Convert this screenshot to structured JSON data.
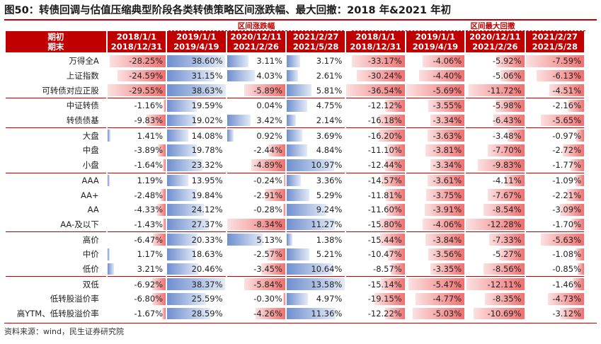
{
  "title": "图50：转债回调与估值压缩典型阶段各类转债策略区间涨跌幅、最大回撤：2018 年&2021 年初",
  "group_labels": {
    "rise": "区间涨跌幅",
    "drawdown": "区间最大回撤"
  },
  "header": {
    "corner": [
      "期初",
      "期末"
    ],
    "periods": [
      [
        "2018/1/1",
        "2018/12/31"
      ],
      [
        "2019/1/1",
        "2019/4/19"
      ],
      [
        "2020/12/11",
        "2021/2/26"
      ],
      [
        "2021/2/27",
        "2021/5/28"
      ],
      [
        "2018/1/1",
        "2018/12/31"
      ],
      [
        "2019/1/1",
        "2019/4/19"
      ],
      [
        "2020/12/11",
        "2021/2/26"
      ],
      [
        "2021/2/27",
        "2021/5/28"
      ]
    ]
  },
  "rows": [
    {
      "label": "万得全A",
      "values": [
        "-28.25%",
        "38.60%",
        "3.11%",
        "3.17%",
        "-33.17%",
        "-4.06%",
        "-5.92%",
        "-7.59%"
      ],
      "sep": false
    },
    {
      "label": "上证指数",
      "values": [
        "-24.59%",
        "31.15%",
        "4.03%",
        "2.61%",
        "-30.24%",
        "-4.40%",
        "-5.06%",
        "-6.13%"
      ],
      "sep": false
    },
    {
      "label": "可转债对应正股",
      "values": [
        "-29.55%",
        "38.63%",
        "-5.89%",
        "5.81%",
        "-36.54%",
        "-5.69%",
        "-11.72%",
        "-4.51%"
      ],
      "sep": true
    },
    {
      "label": "中证转债",
      "values": [
        "-1.16%",
        "19.59%",
        "0.04%",
        "4.75%",
        "-12.12%",
        "-3.55%",
        "-5.98%",
        "-2.16%"
      ],
      "sep": false
    },
    {
      "label": "转债债基",
      "values": [
        "-9.83%",
        "19.02%",
        "3.42%",
        "2.14%",
        "-16.18%",
        "-3.34%",
        "-6.43%",
        "-5.65%"
      ],
      "sep": true
    },
    {
      "label": "大盘",
      "values": [
        "1.41%",
        "14.08%",
        "0.92%",
        "3.69%",
        "-16.20%",
        "-3.63%",
        "-3.48%",
        "-0.97%"
      ],
      "sep": false
    },
    {
      "label": "中盘",
      "values": [
        "-3.89%",
        "19.78%",
        "-2.44%",
        "4.84%",
        "-11.10%",
        "-3.81%",
        "-7.70%",
        "-2.72%"
      ],
      "sep": false
    },
    {
      "label": "小盘",
      "values": [
        "-1.64%",
        "23.32%",
        "-4.89%",
        "10.97%",
        "-12.44%",
        "-3.34%",
        "-9.83%",
        "-1.77%"
      ],
      "sep": true
    },
    {
      "label": "AAA",
      "values": [
        "1.19%",
        "13.95%",
        "-0.24%",
        "3.36%",
        "-14.57%",
        "-3.61%",
        "-4.11%",
        "-1.09%"
      ],
      "sep": false
    },
    {
      "label": "AA+",
      "values": [
        "-2.48%",
        "19.84%",
        "-2.91%",
        "5.29%",
        "-11.81%",
        "-3.75%",
        "-7.67%",
        "-2.21%"
      ],
      "sep": false
    },
    {
      "label": "AA",
      "values": [
        "-4.33%",
        "24.12%",
        "-0.28%",
        "9.24%",
        "-11.60%",
        "-3.91%",
        "-8.54%",
        "-3.09%"
      ],
      "sep": false
    },
    {
      "label": "AA-及以下",
      "values": [
        "-1.43%",
        "27.37%",
        "-8.34%",
        "11.27%",
        "-15.80%",
        "-4.06%",
        "-12.28%",
        "-1.70%"
      ],
      "sep": true
    },
    {
      "label": "高价",
      "values": [
        "-6.47%",
        "20.33%",
        "5.13%",
        "1.38%",
        "-15.44%",
        "-3.84%",
        "-7.33%",
        "-5.63%"
      ],
      "sep": false
    },
    {
      "label": "中价",
      "values": [
        "1.17%",
        "18.63%",
        "-2.57%",
        "5.21%",
        "-10.47%",
        "-3.56%",
        "-5.27%",
        "-1.08%"
      ],
      "sep": false
    },
    {
      "label": "低价",
      "values": [
        "3.21%",
        "20.46%",
        "-3.45%",
        "10.64%",
        "-8.57%",
        "-3.35%",
        "-8.56%",
        "-0.85%"
      ],
      "sep": true
    },
    {
      "label": "双低",
      "values": [
        "-6.92%",
        "38.37%",
        "-5.84%",
        "13.58%",
        "-15.14%",
        "-5.47%",
        "-12.11%",
        "-1.46%"
      ],
      "sep": false
    },
    {
      "label": "低转股溢价率",
      "values": [
        "-6.80%",
        "25.59%",
        "-0.30%",
        "4.97%",
        "-19.15%",
        "-4.77%",
        "-8.35%",
        "-4.73%"
      ],
      "sep": false
    },
    {
      "label": "高YTM、低转股溢价率",
      "values": [
        "-1.67%",
        "28.59%",
        "-4.26%",
        "11.36%",
        "-12.22%",
        "-5.03%",
        "-10.69%",
        "-3.12%"
      ],
      "sep": false
    }
  ],
  "source": "资料来源：wind，民生证券研究院",
  "colors": {
    "accent": "#c00000",
    "positive_bar": "#6f8fcf",
    "negative_bar": "#f07070"
  }
}
